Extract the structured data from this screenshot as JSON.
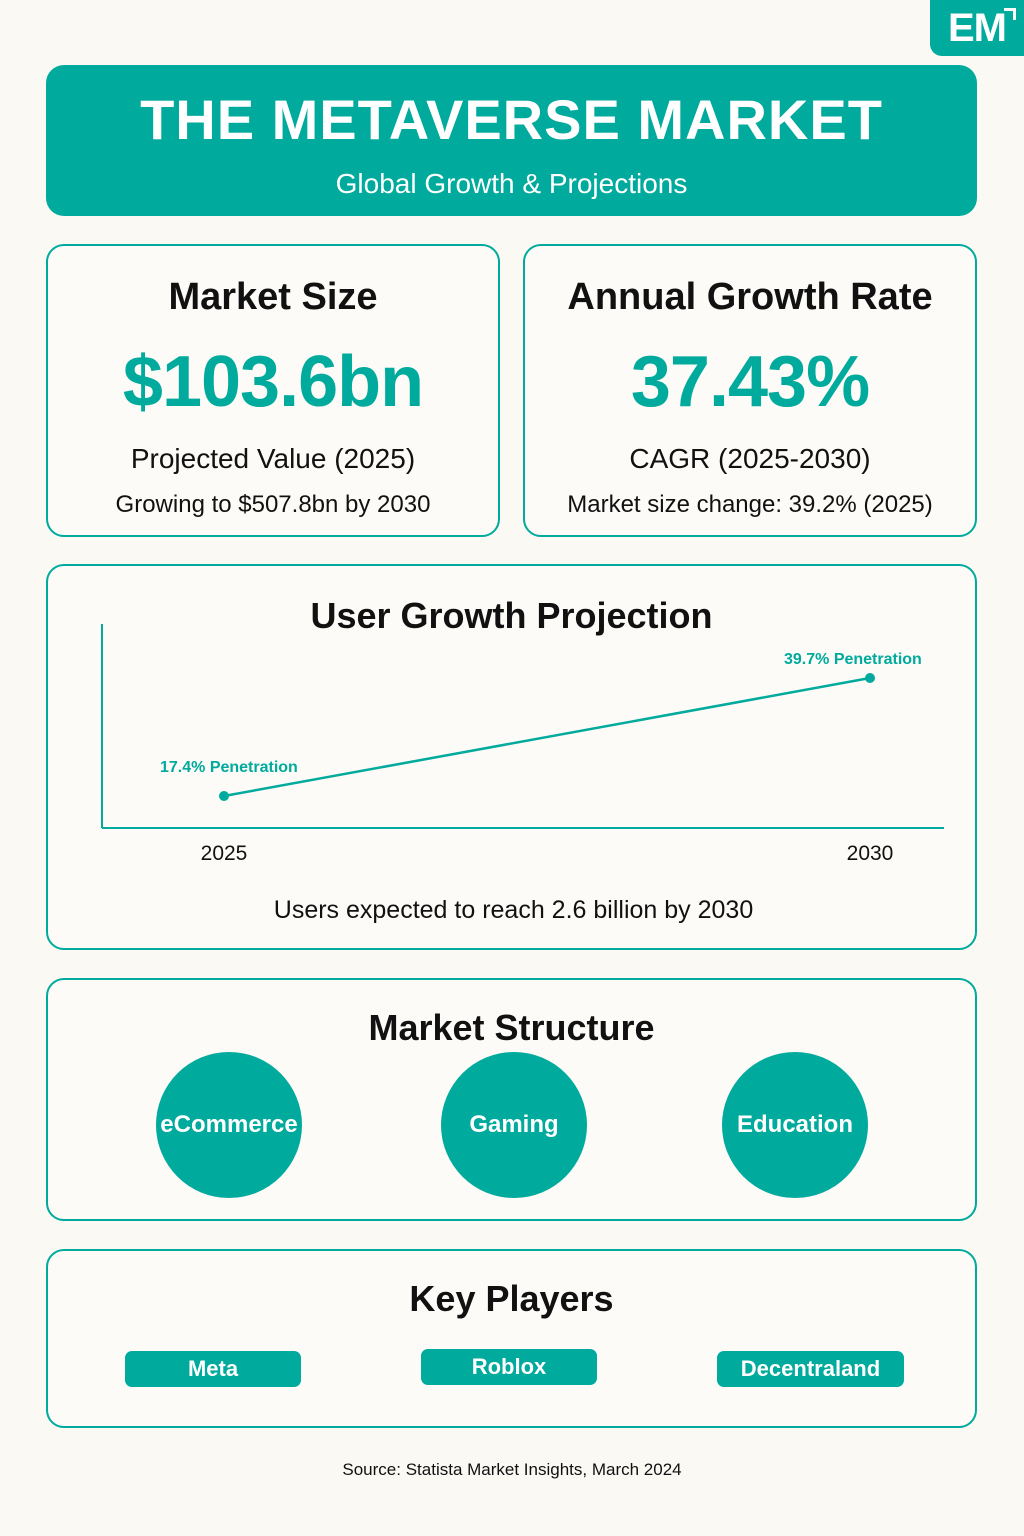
{
  "brand": {
    "logo_text": "EM"
  },
  "header": {
    "title": "THE METAVERSE MARKET",
    "subtitle": "Global Growth & Projections"
  },
  "stats": {
    "market_size": {
      "label": "Market Size",
      "value": "$103.6bn",
      "note1": "Projected Value (2025)",
      "note2": "Growing to $507.8bn by 2030"
    },
    "growth_rate": {
      "label": "Annual Growth Rate",
      "value": "37.43%",
      "note1": "CAGR (2025-2030)",
      "note2": "Market size change: 39.2% (2025)"
    }
  },
  "chart_data": {
    "type": "line",
    "title": "User Growth Projection",
    "x": [
      2025,
      2030
    ],
    "x_tick_labels": [
      "2025",
      "2030"
    ],
    "series": [
      {
        "values": [
          17.4,
          39.7
        ],
        "color": "#00aa9c"
      }
    ],
    "point_labels": [
      "17.4% Penetration",
      "39.7% Penetration"
    ],
    "caption": "Users expected to reach 2.6 billion by 2030",
    "grid": false
  },
  "market_structure": {
    "title": "Market Structure",
    "segments": [
      "eCommerce",
      "Gaming",
      "Education"
    ]
  },
  "key_players": {
    "title": "Key Players",
    "players": [
      "Meta",
      "Roblox",
      "Decentraland"
    ]
  },
  "source": "Source: Statista Market Insights, March 2024",
  "colors": {
    "accent": "#00aa9c",
    "background": "#faf9f4",
    "text": "#111111"
  }
}
